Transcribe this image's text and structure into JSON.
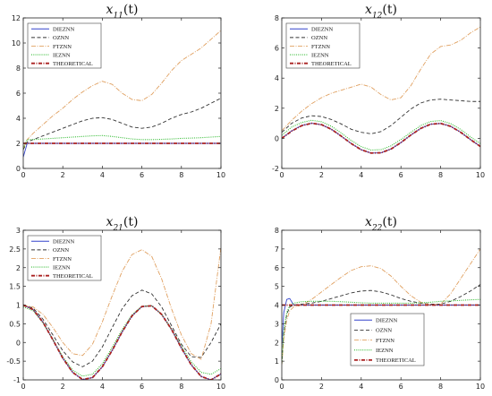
{
  "series_styles": [
    {
      "name": "DIEZNN",
      "color": "#3344cc",
      "dash": "",
      "width": 0.9
    },
    {
      "name": "OZNN",
      "color": "#333333",
      "dash": "4,2.5",
      "width": 0.9
    },
    {
      "name": "FTZNN",
      "color": "#e0a060",
      "dash": "5,1.5,1,1.5",
      "width": 0.9
    },
    {
      "name": "IEZNN",
      "color": "#33bb33",
      "dash": "1,1.3",
      "width": 1.1
    },
    {
      "name": "THEORETICAL",
      "color": "#aa2222",
      "dash": "4,1.5,1,1.5",
      "width": 1.8
    }
  ],
  "chart_data": [
    {
      "type": "line",
      "title": "x11(t)",
      "title_main": "x",
      "title_sub": "11",
      "title_arg": "(t)",
      "xlim": [
        0,
        10
      ],
      "ylim": [
        0,
        12
      ],
      "xticks": [
        0,
        2,
        4,
        6,
        8,
        10
      ],
      "yticks": [
        0,
        2,
        4,
        6,
        8,
        10,
        12
      ],
      "legend": "top-left",
      "x": [
        0,
        0.2,
        0.5,
        1,
        1.5,
        2,
        2.5,
        3,
        3.5,
        4,
        4.5,
        5,
        5.5,
        6,
        6.5,
        7,
        7.5,
        8,
        8.5,
        9,
        9.5,
        10
      ],
      "series": [
        {
          "name": "DIEZNN",
          "values": [
            0.9,
            2.0,
            2.0,
            2.0,
            2.0,
            2.0,
            2.0,
            2.0,
            2.0,
            2.0,
            2.0,
            2.0,
            2.0,
            2.0,
            2.0,
            2.0,
            2.0,
            2.0,
            2.0,
            2.0,
            2.0,
            2.0
          ]
        },
        {
          "name": "OZNN",
          "values": [
            1.5,
            2.1,
            2.3,
            2.6,
            2.9,
            3.2,
            3.5,
            3.8,
            4.0,
            4.05,
            3.9,
            3.6,
            3.3,
            3.2,
            3.3,
            3.6,
            4.0,
            4.3,
            4.5,
            4.8,
            5.2,
            5.6
          ]
        },
        {
          "name": "FTZNN",
          "values": [
            1.6,
            2.3,
            2.8,
            3.5,
            4.2,
            4.8,
            5.5,
            6.1,
            6.6,
            6.95,
            6.7,
            6.0,
            5.5,
            5.4,
            5.9,
            6.8,
            7.8,
            8.6,
            9.1,
            9.6,
            10.3,
            11.0
          ]
        },
        {
          "name": "IEZNN",
          "values": [
            1.6,
            2.3,
            2.3,
            2.35,
            2.4,
            2.45,
            2.5,
            2.55,
            2.6,
            2.62,
            2.55,
            2.45,
            2.35,
            2.3,
            2.3,
            2.32,
            2.35,
            2.4,
            2.42,
            2.45,
            2.5,
            2.55
          ]
        },
        {
          "name": "THEORETICAL",
          "values": [
            2,
            2,
            2,
            2,
            2,
            2,
            2,
            2,
            2,
            2,
            2,
            2,
            2,
            2,
            2,
            2,
            2,
            2,
            2,
            2,
            2,
            2
          ]
        }
      ]
    },
    {
      "type": "line",
      "title": "x12(t)",
      "title_main": "x",
      "title_sub": "12",
      "title_arg": "(t)",
      "xlim": [
        0,
        10
      ],
      "ylim": [
        -2,
        8
      ],
      "xticks": [
        0,
        2,
        4,
        6,
        8,
        10
      ],
      "yticks": [
        -2,
        0,
        2,
        4,
        6,
        8
      ],
      "legend": "top-left",
      "x": [
        0,
        0.5,
        1,
        1.5,
        2,
        2.5,
        3,
        3.5,
        4,
        4.5,
        5,
        5.5,
        6,
        6.5,
        7,
        7.5,
        8,
        8.5,
        9,
        9.5,
        10
      ],
      "series": [
        {
          "name": "DIEZNN",
          "values": [
            0.0,
            0.5,
            0.85,
            1.0,
            0.9,
            0.6,
            0.14,
            -0.35,
            -0.76,
            -0.98,
            -0.96,
            -0.71,
            -0.28,
            0.22,
            0.66,
            0.94,
            0.99,
            0.8,
            0.41,
            -0.08,
            -0.54
          ]
        },
        {
          "name": "OZNN",
          "values": [
            0.4,
            1.0,
            1.35,
            1.5,
            1.45,
            1.25,
            0.95,
            0.6,
            0.4,
            0.3,
            0.45,
            0.85,
            1.4,
            1.95,
            2.35,
            2.55,
            2.6,
            2.55,
            2.5,
            2.45,
            2.45
          ]
        },
        {
          "name": "FTZNN",
          "values": [
            0.5,
            1.2,
            1.8,
            2.3,
            2.7,
            3.0,
            3.2,
            3.4,
            3.6,
            3.4,
            2.9,
            2.55,
            2.7,
            3.5,
            4.6,
            5.6,
            6.1,
            6.2,
            6.5,
            7.0,
            7.4
          ]
        },
        {
          "name": "IEZNN",
          "values": [
            0.2,
            0.75,
            1.05,
            1.2,
            1.1,
            0.8,
            0.35,
            -0.15,
            -0.55,
            -0.78,
            -0.75,
            -0.5,
            -0.08,
            0.4,
            0.85,
            1.12,
            1.18,
            0.98,
            0.6,
            0.1,
            -0.35
          ]
        },
        {
          "name": "THEORETICAL",
          "values": [
            0.0,
            0.48,
            0.84,
            1.0,
            0.91,
            0.6,
            0.14,
            -0.35,
            -0.76,
            -0.98,
            -0.96,
            -0.71,
            -0.28,
            0.22,
            0.66,
            0.94,
            0.99,
            0.8,
            0.41,
            -0.08,
            -0.54
          ]
        }
      ]
    },
    {
      "type": "line",
      "title": "x21(t)",
      "title_main": "x",
      "title_sub": "21",
      "title_arg": "(t)",
      "xlim": [
        0,
        10
      ],
      "ylim": [
        -1,
        3
      ],
      "xticks": [
        0,
        2,
        4,
        6,
        8,
        10
      ],
      "yticks": [
        -1,
        -0.5,
        0,
        0.5,
        1,
        1.5,
        2,
        2.5,
        3
      ],
      "legend": "top-left",
      "x": [
        0,
        0.5,
        1,
        1.5,
        2,
        2.5,
        3,
        3.5,
        4,
        4.5,
        5,
        5.5,
        6,
        6.5,
        7,
        7.5,
        8,
        8.5,
        9,
        9.5,
        10
      ],
      "series": [
        {
          "name": "DIEZNN",
          "values": [
            1.0,
            0.88,
            0.54,
            0.07,
            -0.42,
            -0.8,
            -0.99,
            -0.94,
            -0.65,
            -0.21,
            0.28,
            0.71,
            0.96,
            0.98,
            0.75,
            0.35,
            -0.15,
            -0.6,
            -0.91,
            -1.0,
            -0.84
          ]
        },
        {
          "name": "OZNN",
          "values": [
            1.0,
            0.92,
            0.62,
            0.2,
            -0.22,
            -0.52,
            -0.65,
            -0.5,
            -0.12,
            0.4,
            0.9,
            1.25,
            1.4,
            1.3,
            0.95,
            0.45,
            -0.05,
            -0.38,
            -0.4,
            0.0,
            0.5
          ]
        },
        {
          "name": "FTZNN",
          "values": [
            1.0,
            0.95,
            0.75,
            0.4,
            0.0,
            -0.3,
            -0.35,
            -0.05,
            0.55,
            1.25,
            1.9,
            2.35,
            2.48,
            2.3,
            1.7,
            0.9,
            0.2,
            -0.3,
            -0.45,
            0.5,
            2.55
          ]
        },
        {
          "name": "IEZNN",
          "values": [
            0.95,
            0.85,
            0.52,
            0.08,
            -0.38,
            -0.74,
            -0.9,
            -0.85,
            -0.57,
            -0.13,
            0.34,
            0.74,
            0.97,
            0.98,
            0.76,
            0.36,
            -0.1,
            -0.52,
            -0.8,
            -0.85,
            -0.7
          ]
        },
        {
          "name": "THEORETICAL",
          "values": [
            1.0,
            0.88,
            0.54,
            0.07,
            -0.42,
            -0.8,
            -0.99,
            -0.94,
            -0.65,
            -0.21,
            0.28,
            0.71,
            0.96,
            0.98,
            0.75,
            0.35,
            -0.15,
            -0.6,
            -0.91,
            -1.0,
            -0.84
          ]
        }
      ]
    },
    {
      "type": "line",
      "title": "x22(t)",
      "title_main": "x",
      "title_sub": "22",
      "title_arg": "(t)",
      "xlim": [
        0,
        10
      ],
      "ylim": [
        0,
        8
      ],
      "xticks": [
        0,
        2,
        4,
        6,
        8,
        10
      ],
      "yticks": [
        0,
        1,
        2,
        3,
        4,
        5,
        6,
        7,
        8
      ],
      "legend": "bottom-right",
      "x": [
        0,
        0.1,
        0.25,
        0.4,
        0.6,
        1,
        1.5,
        2,
        2.5,
        3,
        3.5,
        4,
        4.5,
        5,
        5.5,
        6,
        6.5,
        7,
        7.5,
        8,
        8.5,
        9,
        9.5,
        10
      ],
      "series": [
        {
          "name": "DIEZNN",
          "values": [
            1.8,
            3.6,
            4.3,
            4.35,
            4.0,
            4.0,
            4.0,
            4.0,
            4.0,
            4.0,
            4.0,
            4.0,
            4.0,
            4.0,
            4.0,
            4.0,
            4.0,
            4.0,
            4.0,
            4.0,
            4.0,
            4.0,
            4.0,
            4.0
          ]
        },
        {
          "name": "OZNN",
          "values": [
            0.8,
            2.5,
            3.5,
            3.9,
            4.0,
            4.05,
            4.1,
            4.2,
            4.35,
            4.5,
            4.65,
            4.75,
            4.78,
            4.7,
            4.55,
            4.35,
            4.2,
            4.1,
            4.05,
            4.05,
            4.2,
            4.45,
            4.75,
            5.1
          ]
        },
        {
          "name": "FTZNN",
          "values": [
            0.8,
            2.2,
            3.2,
            3.7,
            3.9,
            4.0,
            4.3,
            4.7,
            5.1,
            5.5,
            5.85,
            6.05,
            6.1,
            5.95,
            5.55,
            5.0,
            4.5,
            4.15,
            4.0,
            4.05,
            4.6,
            5.4,
            6.2,
            7.0
          ]
        },
        {
          "name": "IEZNN",
          "values": [
            0.9,
            2.6,
            3.6,
            3.95,
            4.1,
            4.18,
            4.2,
            4.2,
            4.2,
            4.18,
            4.15,
            4.12,
            4.1,
            4.1,
            4.1,
            4.1,
            4.1,
            4.12,
            4.15,
            4.2,
            4.22,
            4.25,
            4.28,
            4.3
          ]
        },
        {
          "name": "THEORETICAL",
          "values": [
            4,
            4,
            4,
            4,
            4,
            4,
            4,
            4,
            4,
            4,
            4,
            4,
            4,
            4,
            4,
            4,
            4,
            4,
            4,
            4,
            4,
            4,
            4,
            4
          ]
        }
      ]
    }
  ]
}
